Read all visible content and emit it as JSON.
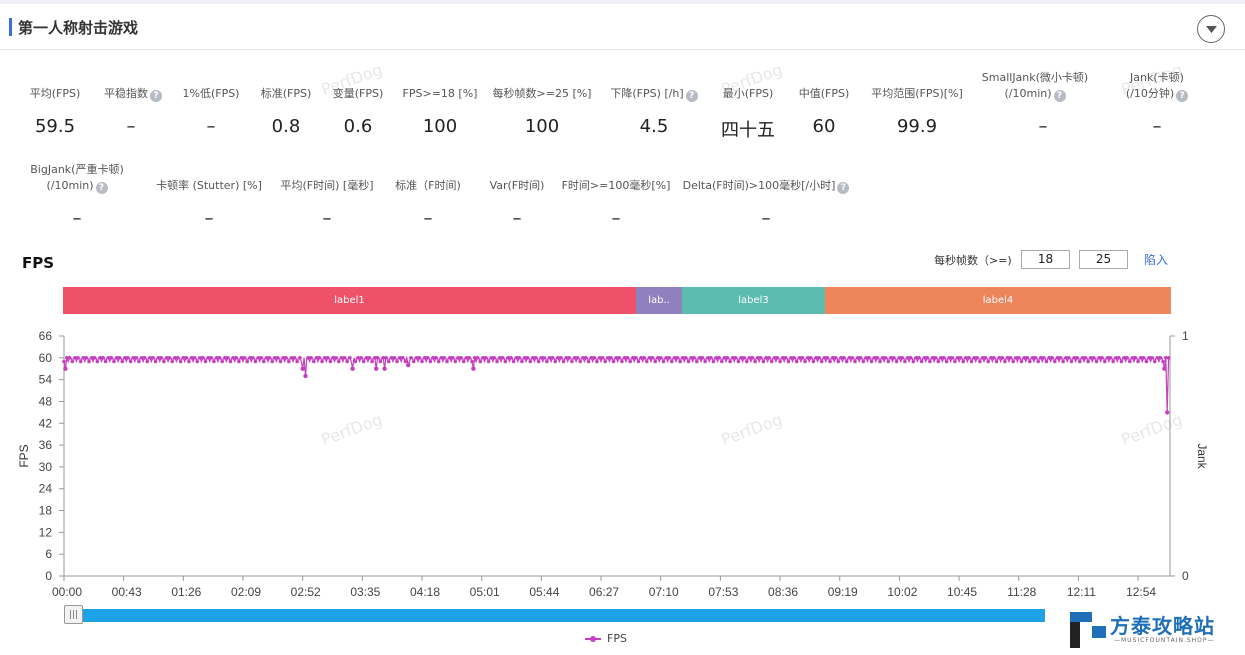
{
  "header": {
    "title": "第一人称射击游戏"
  },
  "metrics_row1": [
    {
      "label": "平均(FPS)",
      "value": "59.5",
      "help": false
    },
    {
      "label": "平稳指数",
      "value": "–",
      "help": true
    },
    {
      "label": "1%低(FPS)",
      "value": "–",
      "help": false
    },
    {
      "label": "标准(FPS)",
      "value": "0.8",
      "help": false
    },
    {
      "label": "变量(FPS)",
      "value": "0.6",
      "help": false
    },
    {
      "label": "FPS>=18 [%]",
      "value": "100",
      "help": false
    },
    {
      "label": "每秒帧数>=25 [%]",
      "value": "100",
      "help": false
    },
    {
      "label": "下降(FPS) [/h]",
      "value": "4.5",
      "help": true
    },
    {
      "label": "最小(FPS)",
      "value": "四十五",
      "help": false
    },
    {
      "label": "中值(FPS)",
      "value": "60",
      "help": false
    },
    {
      "label": "平均范围(FPS)[%]",
      "value": "99.9",
      "help": false
    },
    {
      "label": "SmallJank(微小卡顿)",
      "label2": "(/10min)",
      "value": "–",
      "help": true
    },
    {
      "label": "Jank(卡顿)",
      "label2": "(/10分钟)",
      "value": "–",
      "help": true
    }
  ],
  "metrics_row2": [
    {
      "label": "BigJank(严重卡顿)",
      "label2": "(/10min)",
      "value": "–",
      "help": true
    },
    {
      "label": "卡顿率 (Stutter) [%]",
      "value": "–",
      "help": false
    },
    {
      "label": "平均(F时间) [毫秒]",
      "value": "–",
      "help": false
    },
    {
      "label": "标准（F时间)",
      "value": "–",
      "help": false
    },
    {
      "label": "Var(F时间)",
      "value": "–",
      "help": false
    },
    {
      "label": "F时间>=100毫秒[%]",
      "value": "–",
      "help": false
    },
    {
      "label": "Delta(F时间)>100毫秒[/小时]",
      "value": "–",
      "help": true
    }
  ],
  "chart_section": {
    "title": "FPS",
    "threshold_label": "每秒帧数（>=)",
    "threshold_1": "18",
    "threshold_2": "25",
    "import_label": "陷入"
  },
  "labels_bar": [
    {
      "name": "label1",
      "color": "#ee5168"
    },
    {
      "name": "lab..",
      "color": "#9080c0"
    },
    {
      "name": "label3",
      "color": "#5cbcb0"
    },
    {
      "name": "label4",
      "color": "#ee845a"
    }
  ],
  "watermark": "PerfDog",
  "legend": {
    "fps": "FPS"
  },
  "brand": {
    "name": "方泰攻略站",
    "sub": "—MUSICFOUNTAIN.SHOP—"
  },
  "chart_data": {
    "type": "line",
    "title": "FPS",
    "xlabel": "",
    "ylabel": "FPS",
    "y2label": "Jank",
    "ylim": [
      0,
      66
    ],
    "yticks": [
      0,
      6,
      12,
      18,
      24,
      30,
      36,
      42,
      48,
      54,
      60,
      66
    ],
    "y2lim": [
      0,
      1
    ],
    "y2ticks": [
      0,
      1
    ],
    "xlim": [
      "00:00",
      "13:17"
    ],
    "xticks": [
      "00:00",
      "00:43",
      "01:26",
      "02:09",
      "02:52",
      "03:35",
      "04:18",
      "05:01",
      "05:44",
      "06:27",
      "07:10",
      "07:53",
      "08:36",
      "09:19",
      "10:02",
      "10:45",
      "11:28",
      "12:11",
      "12:54"
    ],
    "label_spans": [
      {
        "name": "label1",
        "start": "00:00",
        "end": "06:55"
      },
      {
        "name": "lab..",
        "start": "06:55",
        "end": "07:28"
      },
      {
        "name": "label3",
        "start": "07:28",
        "end": "09:12"
      },
      {
        "name": "label4",
        "start": "09:12",
        "end": "13:17"
      }
    ],
    "series": [
      {
        "name": "FPS",
        "color": "#c63fc0",
        "baseline": 60,
        "dips": [
          {
            "t": "00:01",
            "fps": 57
          },
          {
            "t": "02:52",
            "fps": 57
          },
          {
            "t": "02:54",
            "fps": 55
          },
          {
            "t": "03:28",
            "fps": 57
          },
          {
            "t": "03:45",
            "fps": 57
          },
          {
            "t": "03:51",
            "fps": 57
          },
          {
            "t": "04:08",
            "fps": 58
          },
          {
            "t": "04:55",
            "fps": 57
          },
          {
            "t": "13:13",
            "fps": 57
          },
          {
            "t": "13:15",
            "fps": 45
          }
        ]
      }
    ]
  }
}
